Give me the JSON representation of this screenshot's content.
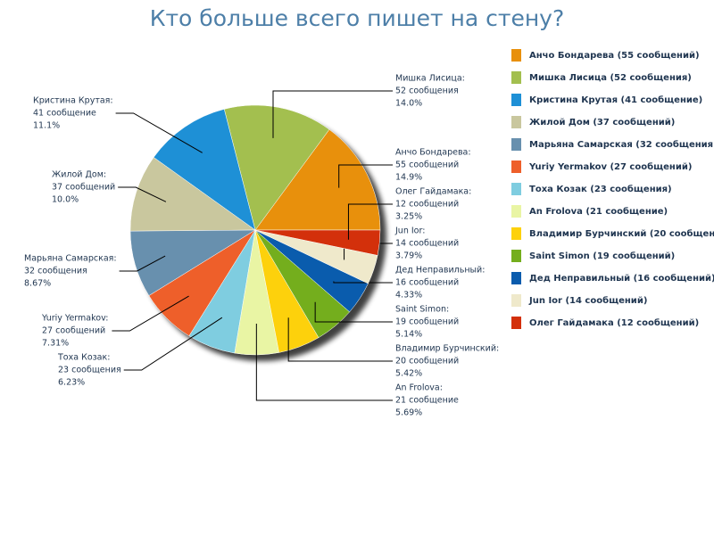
{
  "chart_data": {
    "type": "pie",
    "title": "Кто больше всего пишет на стену?",
    "categories": [
      "Анчо Бондарева (55 сообщений)",
      "Мишка Лисица (52 сообщения)",
      "Кристина Крутая (41 сообщение)",
      "Жилой Дом (37 сообщений)",
      "Марьяна Самарская (32 сообщения)",
      "Yuriy Yermakov (27 сообщений)",
      "Тоха Козак (23 сообщения)",
      "An Frolova (21 сообщение)",
      "Владимир Бурчинский (20 сообщений)",
      "Saint Simon (19 сообщений)",
      "Дед Неправильный (16 сообщений)",
      "Jun Ior (14 сообщений)",
      "Олег Гайдамака (12 сообщений)"
    ],
    "slice_names": [
      "Анчо Бондарева:",
      "Мишка Лисица:",
      "Кристина Крутая:",
      "Жилой Дом:",
      "Марьяна Самарская:",
      "Yuriy Yermakov:",
      "Тоха Козак:",
      "An Frolova:",
      "Владимир Бурчинский:",
      "Saint Simon:",
      "Дед Неправильный:",
      "Jun Ior:",
      "Олег Гайдамака:"
    ],
    "values": [
      55,
      52,
      41,
      37,
      32,
      27,
      23,
      21,
      20,
      19,
      16,
      14,
      12
    ],
    "value_labels": [
      "55 сообщений",
      "52 сообщения",
      "41 сообщение",
      "37 сообщений",
      "32 сообщения",
      "27 сообщений",
      "23 сообщения",
      "21 сообщение",
      "20 сообщений",
      "19 сообщений",
      "16 сообщений",
      "14 сообщений",
      "12 сообщений"
    ],
    "percent_labels": [
      "14.9%",
      "14.0%",
      "11.1%",
      "10.0%",
      "8.67%",
      "7.31%",
      "6.23%",
      "5.69%",
      "5.42%",
      "5.14%",
      "4.33%",
      "3.79%",
      "3.25%"
    ],
    "colors": [
      "#e8900c",
      "#a3bf4f",
      "#1e90d6",
      "#c9c79e",
      "#6890ae",
      "#ee5f2a",
      "#7fcde0",
      "#e9f5a4",
      "#fdd10c",
      "#74ae1d",
      "#0a5cad",
      "#efe9cb",
      "#d3300b"
    ],
    "legend": "right"
  }
}
